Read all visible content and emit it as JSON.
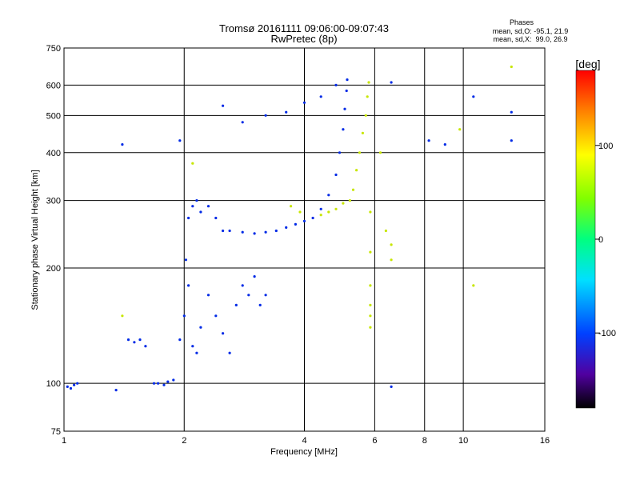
{
  "chart_data": {
    "type": "scatter",
    "title": "Tromsø 20161111 09:06:00-09:07:43",
    "subtitle": "RwPretec (8p)",
    "xlabel": "Frequency [MHz]",
    "ylabel": "Stationary phase Virtual Height [km]",
    "x_scale": "log",
    "y_scale": "log",
    "xlim": [
      1,
      16
    ],
    "ylim": [
      75,
      750
    ],
    "x_ticks": [
      1,
      2,
      4,
      6,
      8,
      10,
      16
    ],
    "y_ticks": [
      75,
      100,
      200,
      300,
      400,
      500,
      600,
      750
    ],
    "grid": true,
    "phases_box": {
      "heading": "Phases",
      "line_o": "mean, sd,O: -95.1, 21.9",
      "line_x": "mean, sd,X:  99.0, 26.9"
    },
    "colorbar": {
      "label": "[deg]",
      "range": [
        -180,
        180
      ],
      "ticks": [
        100,
        0,
        -100
      ]
    },
    "series": [
      {
        "mode": "O",
        "phase_mean": -95.1,
        "phase_sd": 21.9,
        "points": [
          [
            1.02,
            98
          ],
          [
            1.04,
            97
          ],
          [
            1.06,
            99
          ],
          [
            1.08,
            100
          ],
          [
            1.35,
            96
          ],
          [
            1.45,
            130
          ],
          [
            1.5,
            128
          ],
          [
            1.55,
            130
          ],
          [
            1.6,
            125
          ],
          [
            1.68,
            100
          ],
          [
            1.72,
            100
          ],
          [
            1.78,
            99
          ],
          [
            1.82,
            101
          ],
          [
            1.88,
            102
          ],
          [
            1.95,
            130
          ],
          [
            2.0,
            150
          ],
          [
            2.02,
            210
          ],
          [
            2.05,
            180
          ],
          [
            2.1,
            125
          ],
          [
            2.15,
            120
          ],
          [
            2.2,
            140
          ],
          [
            2.3,
            170
          ],
          [
            2.4,
            150
          ],
          [
            2.5,
            135
          ],
          [
            2.6,
            120
          ],
          [
            2.7,
            160
          ],
          [
            2.8,
            180
          ],
          [
            2.9,
            170
          ],
          [
            3.0,
            190
          ],
          [
            3.1,
            160
          ],
          [
            3.2,
            170
          ],
          [
            2.05,
            270
          ],
          [
            2.1,
            290
          ],
          [
            2.15,
            300
          ],
          [
            2.2,
            280
          ],
          [
            2.3,
            290
          ],
          [
            2.4,
            270
          ],
          [
            2.5,
            250
          ],
          [
            2.6,
            250
          ],
          [
            2.8,
            248
          ],
          [
            3.0,
            246
          ],
          [
            3.2,
            248
          ],
          [
            3.4,
            250
          ],
          [
            3.6,
            255
          ],
          [
            3.8,
            260
          ],
          [
            4.0,
            265
          ],
          [
            4.2,
            270
          ],
          [
            4.4,
            285
          ],
          [
            4.6,
            310
          ],
          [
            4.8,
            350
          ],
          [
            4.9,
            400
          ],
          [
            5.0,
            460
          ],
          [
            5.05,
            520
          ],
          [
            5.1,
            580
          ],
          [
            5.12,
            620
          ],
          [
            2.5,
            530
          ],
          [
            2.8,
            480
          ],
          [
            3.2,
            500
          ],
          [
            3.6,
            510
          ],
          [
            4.0,
            540
          ],
          [
            4.4,
            560
          ],
          [
            4.8,
            600
          ],
          [
            6.6,
            610
          ],
          [
            6.6,
            98
          ],
          [
            10.6,
            560
          ],
          [
            13.2,
            510
          ],
          [
            13.2,
            430
          ],
          [
            8.2,
            430
          ],
          [
            9.0,
            420
          ],
          [
            1.4,
            420
          ],
          [
            1.95,
            430
          ]
        ]
      },
      {
        "mode": "X",
        "phase_mean": 99.0,
        "phase_sd": 26.9,
        "points": [
          [
            4.4,
            275
          ],
          [
            4.6,
            280
          ],
          [
            4.8,
            285
          ],
          [
            5.0,
            295
          ],
          [
            5.2,
            300
          ],
          [
            5.3,
            320
          ],
          [
            5.4,
            360
          ],
          [
            5.5,
            400
          ],
          [
            5.6,
            450
          ],
          [
            5.7,
            500
          ],
          [
            5.75,
            560
          ],
          [
            5.8,
            610
          ],
          [
            5.85,
            280
          ],
          [
            5.85,
            220
          ],
          [
            5.85,
            180
          ],
          [
            5.85,
            160
          ],
          [
            5.85,
            150
          ],
          [
            5.85,
            140
          ],
          [
            6.4,
            250
          ],
          [
            6.6,
            230
          ],
          [
            6.6,
            210
          ],
          [
            3.9,
            280
          ],
          [
            3.7,
            290
          ],
          [
            9.8,
            460
          ],
          [
            10.6,
            180
          ],
          [
            13.2,
            670
          ],
          [
            2.1,
            375
          ],
          [
            1.4,
            150
          ],
          [
            6.2,
            400
          ]
        ]
      }
    ]
  }
}
